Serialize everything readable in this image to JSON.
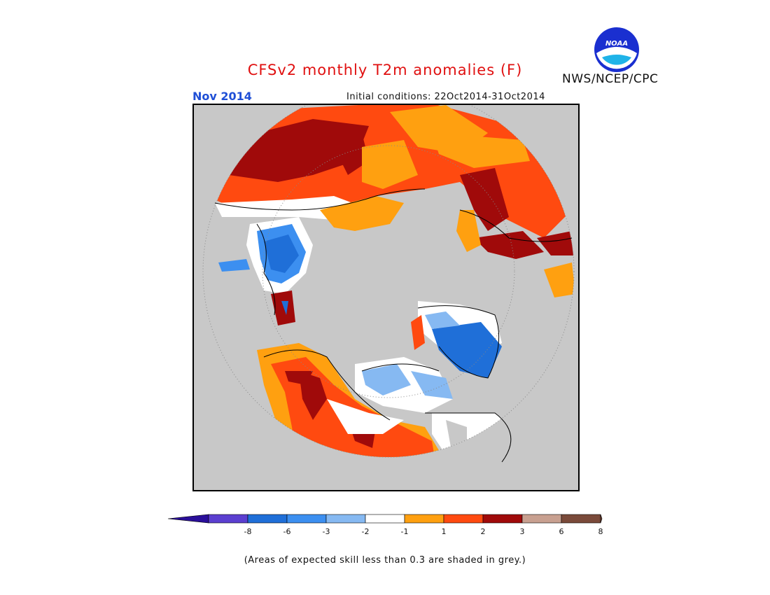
{
  "title": "CFSv2 monthly T2m anomalies (F)",
  "month": "Nov 2014",
  "initial_conditions": "Initial conditions: 22Oct2014-31Oct2014",
  "agency": "NWS/NCEP/CPC",
  "logo_text": "NOAA",
  "footnote": "(Areas of expected skill less than 0.3 are shaded in grey.)",
  "legend": {
    "ticks": [
      "-8",
      "-6",
      "-3",
      "-2",
      "-1",
      "1",
      "2",
      "3",
      "6",
      "8"
    ],
    "colors": [
      "#2a0f9a",
      "#5b3fd0",
      "#1f6fd8",
      "#3c8ff0",
      "#86b9f2",
      "#ffffff",
      "#ffa010",
      "#ff4a10",
      "#a00a0a",
      "#c8a090",
      "#7a4a3a"
    ],
    "low_end_color": "#2a0f9a",
    "high_end_color": "#7a4a3a"
  },
  "map": {
    "projection": "north polar stereographic",
    "grey_color": "#c8c8c8"
  }
}
